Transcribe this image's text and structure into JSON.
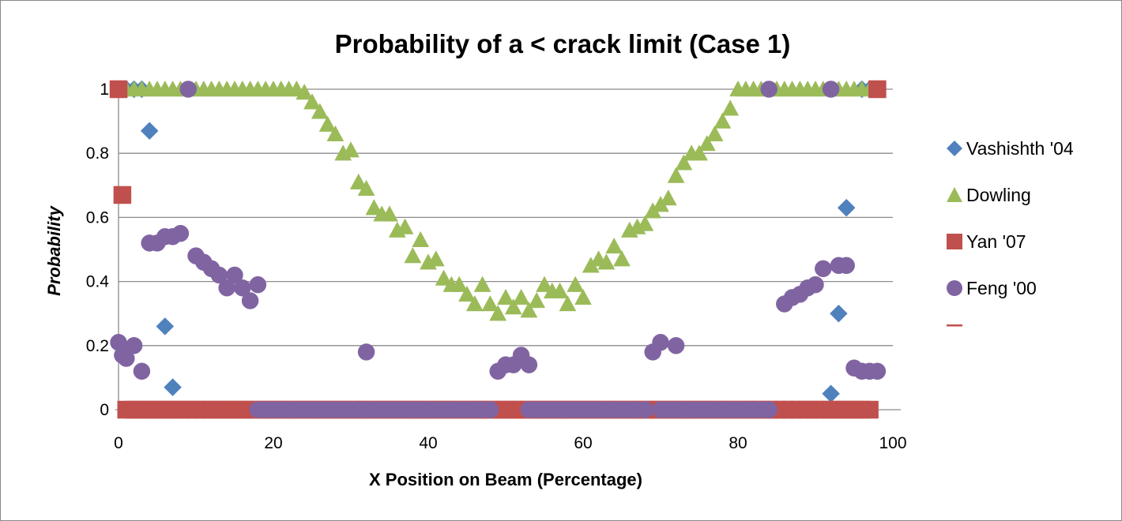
{
  "chart_data": {
    "type": "scatter",
    "title": "Probability of a < crack limit (Case 1)",
    "xlabel": "X Position on Beam (Percentage)",
    "ylabel": "Probability",
    "xlim": [
      0,
      100
    ],
    "ylim": [
      0,
      1
    ],
    "xticks": [
      "0",
      "20",
      "40",
      "60",
      "80",
      "100"
    ],
    "yticks": [
      "0",
      "0.2",
      "0.4",
      "0.6",
      "0.8",
      "1"
    ],
    "grid": "horizontal",
    "legend_position": "right",
    "series": [
      {
        "name": "Vashishth '04",
        "marker": "diamond",
        "color": "#4F81BD",
        "points": [
          [
            1,
            1
          ],
          [
            2,
            1
          ],
          [
            3,
            1
          ],
          [
            4,
            0.87
          ],
          [
            6,
            0.26
          ],
          [
            7,
            0.07
          ],
          [
            92,
            0.05
          ],
          [
            93,
            0.3
          ],
          [
            94,
            0.63
          ],
          [
            96,
            1
          ],
          [
            97,
            1
          ],
          [
            97,
            0
          ]
        ]
      },
      {
        "name": "Dowling",
        "marker": "triangle",
        "color": "#9BBB59",
        "points": [
          [
            0,
            1
          ],
          [
            1,
            1
          ],
          [
            2,
            1
          ],
          [
            3,
            1
          ],
          [
            4,
            1
          ],
          [
            5,
            1
          ],
          [
            6,
            1
          ],
          [
            7,
            1
          ],
          [
            8,
            1
          ],
          [
            9,
            1
          ],
          [
            10,
            1
          ],
          [
            11,
            1
          ],
          [
            12,
            1
          ],
          [
            13,
            1
          ],
          [
            14,
            1
          ],
          [
            15,
            1
          ],
          [
            16,
            1
          ],
          [
            17,
            1
          ],
          [
            18,
            1
          ],
          [
            19,
            1
          ],
          [
            20,
            1
          ],
          [
            21,
            1
          ],
          [
            22,
            1
          ],
          [
            23,
            1
          ],
          [
            24,
            0.99
          ],
          [
            25,
            0.96
          ],
          [
            26,
            0.93
          ],
          [
            27,
            0.89
          ],
          [
            28,
            0.86
          ],
          [
            29,
            0.8
          ],
          [
            30,
            0.81
          ],
          [
            31,
            0.71
          ],
          [
            32,
            0.69
          ],
          [
            33,
            0.63
          ],
          [
            34,
            0.61
          ],
          [
            35,
            0.61
          ],
          [
            36,
            0.56
          ],
          [
            37,
            0.57
          ],
          [
            38,
            0.48
          ],
          [
            39,
            0.53
          ],
          [
            40,
            0.46
          ],
          [
            41,
            0.47
          ],
          [
            42,
            0.41
          ],
          [
            43,
            0.39
          ],
          [
            44,
            0.39
          ],
          [
            45,
            0.36
          ],
          [
            46,
            0.33
          ],
          [
            47,
            0.39
          ],
          [
            48,
            0.33
          ],
          [
            49,
            0.3
          ],
          [
            50,
            0.35
          ],
          [
            51,
            0.32
          ],
          [
            52,
            0.35
          ],
          [
            53,
            0.31
          ],
          [
            54,
            0.34
          ],
          [
            55,
            0.39
          ],
          [
            56,
            0.37
          ],
          [
            57,
            0.37
          ],
          [
            58,
            0.33
          ],
          [
            59,
            0.39
          ],
          [
            60,
            0.35
          ],
          [
            61,
            0.45
          ],
          [
            62,
            0.47
          ],
          [
            63,
            0.46
          ],
          [
            64,
            0.51
          ],
          [
            65,
            0.47
          ],
          [
            66,
            0.56
          ],
          [
            67,
            0.57
          ],
          [
            68,
            0.58
          ],
          [
            69,
            0.62
          ],
          [
            70,
            0.64
          ],
          [
            71,
            0.66
          ],
          [
            72,
            0.73
          ],
          [
            73,
            0.77
          ],
          [
            74,
            0.8
          ],
          [
            75,
            0.8
          ],
          [
            76,
            0.83
          ],
          [
            77,
            0.86
          ],
          [
            78,
            0.9
          ],
          [
            79,
            0.94
          ],
          [
            80,
            1
          ],
          [
            81,
            1
          ],
          [
            82,
            1
          ],
          [
            83,
            1
          ],
          [
            84,
            1
          ],
          [
            85,
            1
          ],
          [
            86,
            1
          ],
          [
            87,
            1
          ],
          [
            88,
            1
          ],
          [
            89,
            1
          ],
          [
            90,
            1
          ],
          [
            91,
            1
          ],
          [
            92,
            1
          ],
          [
            93,
            1
          ],
          [
            94,
            1
          ],
          [
            95,
            1
          ],
          [
            96,
            1
          ],
          [
            97,
            1
          ],
          [
            98,
            1
          ]
        ]
      },
      {
        "name": " Yan '07",
        "marker": "square",
        "color": "#C0504D",
        "points": [
          [
            0,
            1
          ],
          [
            0.5,
            0.67
          ],
          [
            1,
            0
          ],
          [
            2,
            0
          ],
          [
            3,
            0
          ],
          [
            4,
            0
          ],
          [
            5,
            0
          ],
          [
            6,
            0
          ],
          [
            7,
            0
          ],
          [
            8,
            0
          ],
          [
            9,
            0
          ],
          [
            10,
            0
          ],
          [
            11,
            0
          ],
          [
            12,
            0
          ],
          [
            13,
            0
          ],
          [
            14,
            0
          ],
          [
            15,
            0
          ],
          [
            16,
            0
          ],
          [
            17,
            0
          ],
          [
            18,
            0
          ],
          [
            19,
            0
          ],
          [
            20,
            0
          ],
          [
            21,
            0
          ],
          [
            22,
            0
          ],
          [
            23,
            0
          ],
          [
            24,
            0
          ],
          [
            25,
            0
          ],
          [
            26,
            0
          ],
          [
            27,
            0
          ],
          [
            28,
            0
          ],
          [
            29,
            0
          ],
          [
            30,
            0
          ],
          [
            31,
            0
          ],
          [
            32,
            0
          ],
          [
            33,
            0
          ],
          [
            34,
            0
          ],
          [
            35,
            0
          ],
          [
            36,
            0
          ],
          [
            37,
            0
          ],
          [
            38,
            0
          ],
          [
            39,
            0
          ],
          [
            40,
            0
          ],
          [
            41,
            0
          ],
          [
            42,
            0
          ],
          [
            43,
            0
          ],
          [
            44,
            0
          ],
          [
            45,
            0
          ],
          [
            46,
            0
          ],
          [
            47,
            0
          ],
          [
            48,
            0
          ],
          [
            49,
            0
          ],
          [
            50,
            0
          ],
          [
            51,
            0
          ],
          [
            52,
            0
          ],
          [
            53,
            0
          ],
          [
            54,
            0
          ],
          [
            55,
            0
          ],
          [
            56,
            0
          ],
          [
            57,
            0
          ],
          [
            58,
            0
          ],
          [
            59,
            0
          ],
          [
            60,
            0
          ],
          [
            61,
            0
          ],
          [
            62,
            0
          ],
          [
            63,
            0
          ],
          [
            64,
            0
          ],
          [
            65,
            0
          ],
          [
            66,
            0
          ],
          [
            67,
            0
          ],
          [
            68,
            0
          ],
          [
            69,
            0
          ],
          [
            70,
            0
          ],
          [
            71,
            0
          ],
          [
            72,
            0
          ],
          [
            73,
            0
          ],
          [
            74,
            0
          ],
          [
            75,
            0
          ],
          [
            76,
            0
          ],
          [
            77,
            0
          ],
          [
            78,
            0
          ],
          [
            79,
            0
          ],
          [
            80,
            0
          ],
          [
            81,
            0
          ],
          [
            82,
            0
          ],
          [
            83,
            0
          ],
          [
            84,
            0
          ],
          [
            85,
            0
          ],
          [
            86,
            0
          ],
          [
            87,
            0
          ],
          [
            88,
            0
          ],
          [
            89,
            0
          ],
          [
            90,
            0
          ],
          [
            91,
            0
          ],
          [
            92,
            0
          ],
          [
            93,
            0
          ],
          [
            94,
            0
          ],
          [
            95,
            0
          ],
          [
            96,
            0
          ],
          [
            97,
            0
          ],
          [
            98,
            1
          ]
        ]
      },
      {
        "name": "Feng '00",
        "marker": "circle",
        "color": "#8064A2",
        "points": [
          [
            0,
            0.21
          ],
          [
            0.5,
            0.17
          ],
          [
            1,
            0.16
          ],
          [
            2,
            0.2
          ],
          [
            3,
            0.12
          ],
          [
            4,
            0.52
          ],
          [
            5,
            0.52
          ],
          [
            6,
            0.54
          ],
          [
            7,
            0.54
          ],
          [
            8,
            0.55
          ],
          [
            9,
            1
          ],
          [
            10,
            0.48
          ],
          [
            11,
            0.46
          ],
          [
            12,
            0.44
          ],
          [
            13,
            0.42
          ],
          [
            14,
            0.38
          ],
          [
            15,
            0.42
          ],
          [
            16,
            0.38
          ],
          [
            17,
            0.34
          ],
          [
            18,
            0.39
          ],
          [
            18,
            0
          ],
          [
            19,
            0
          ],
          [
            20,
            0
          ],
          [
            21,
            0
          ],
          [
            22,
            0
          ],
          [
            23,
            0
          ],
          [
            24,
            0
          ],
          [
            25,
            0
          ],
          [
            26,
            0
          ],
          [
            27,
            0
          ],
          [
            28,
            0
          ],
          [
            29,
            0
          ],
          [
            30,
            0
          ],
          [
            31,
            0
          ],
          [
            32,
            0.18
          ],
          [
            32,
            0
          ],
          [
            33,
            0
          ],
          [
            34,
            0
          ],
          [
            35,
            0
          ],
          [
            36,
            0
          ],
          [
            37,
            0
          ],
          [
            38,
            0
          ],
          [
            39,
            0
          ],
          [
            40,
            0
          ],
          [
            41,
            0
          ],
          [
            42,
            0
          ],
          [
            43,
            0
          ],
          [
            44,
            0
          ],
          [
            45,
            0
          ],
          [
            46,
            0
          ],
          [
            47,
            0
          ],
          [
            48,
            0
          ],
          [
            49,
            0.12
          ],
          [
            50,
            0.14
          ],
          [
            51,
            0.14
          ],
          [
            52,
            0.17
          ],
          [
            53,
            0.14
          ],
          [
            53,
            0
          ],
          [
            54,
            0
          ],
          [
            55,
            0
          ],
          [
            56,
            0
          ],
          [
            57,
            0
          ],
          [
            58,
            0
          ],
          [
            59,
            0
          ],
          [
            60,
            0
          ],
          [
            61,
            0
          ],
          [
            62,
            0
          ],
          [
            63,
            0
          ],
          [
            64,
            0
          ],
          [
            65,
            0
          ],
          [
            66,
            0
          ],
          [
            67,
            0
          ],
          [
            68,
            0
          ],
          [
            69,
            0.18
          ],
          [
            70,
            0.21
          ],
          [
            72,
            0.2
          ],
          [
            70,
            0
          ],
          [
            71,
            0
          ],
          [
            72,
            0
          ],
          [
            73,
            0
          ],
          [
            74,
            0
          ],
          [
            75,
            0
          ],
          [
            76,
            0
          ],
          [
            77,
            0
          ],
          [
            78,
            0
          ],
          [
            79,
            0
          ],
          [
            80,
            0
          ],
          [
            81,
            0
          ],
          [
            82,
            0
          ],
          [
            83,
            0
          ],
          [
            84,
            0
          ],
          [
            84,
            1
          ],
          [
            86,
            0.33
          ],
          [
            87,
            0.35
          ],
          [
            88,
            0.36
          ],
          [
            89,
            0.38
          ],
          [
            90,
            0.39
          ],
          [
            91,
            0.44
          ],
          [
            92,
            1
          ],
          [
            93,
            0.45
          ],
          [
            94,
            0.45
          ],
          [
            95,
            0.13
          ],
          [
            96,
            0.12
          ],
          [
            97,
            0.12
          ],
          [
            98,
            0.12
          ]
        ]
      },
      {
        "name": "",
        "marker": "dash",
        "color": "#C0504D",
        "points": []
      }
    ]
  }
}
